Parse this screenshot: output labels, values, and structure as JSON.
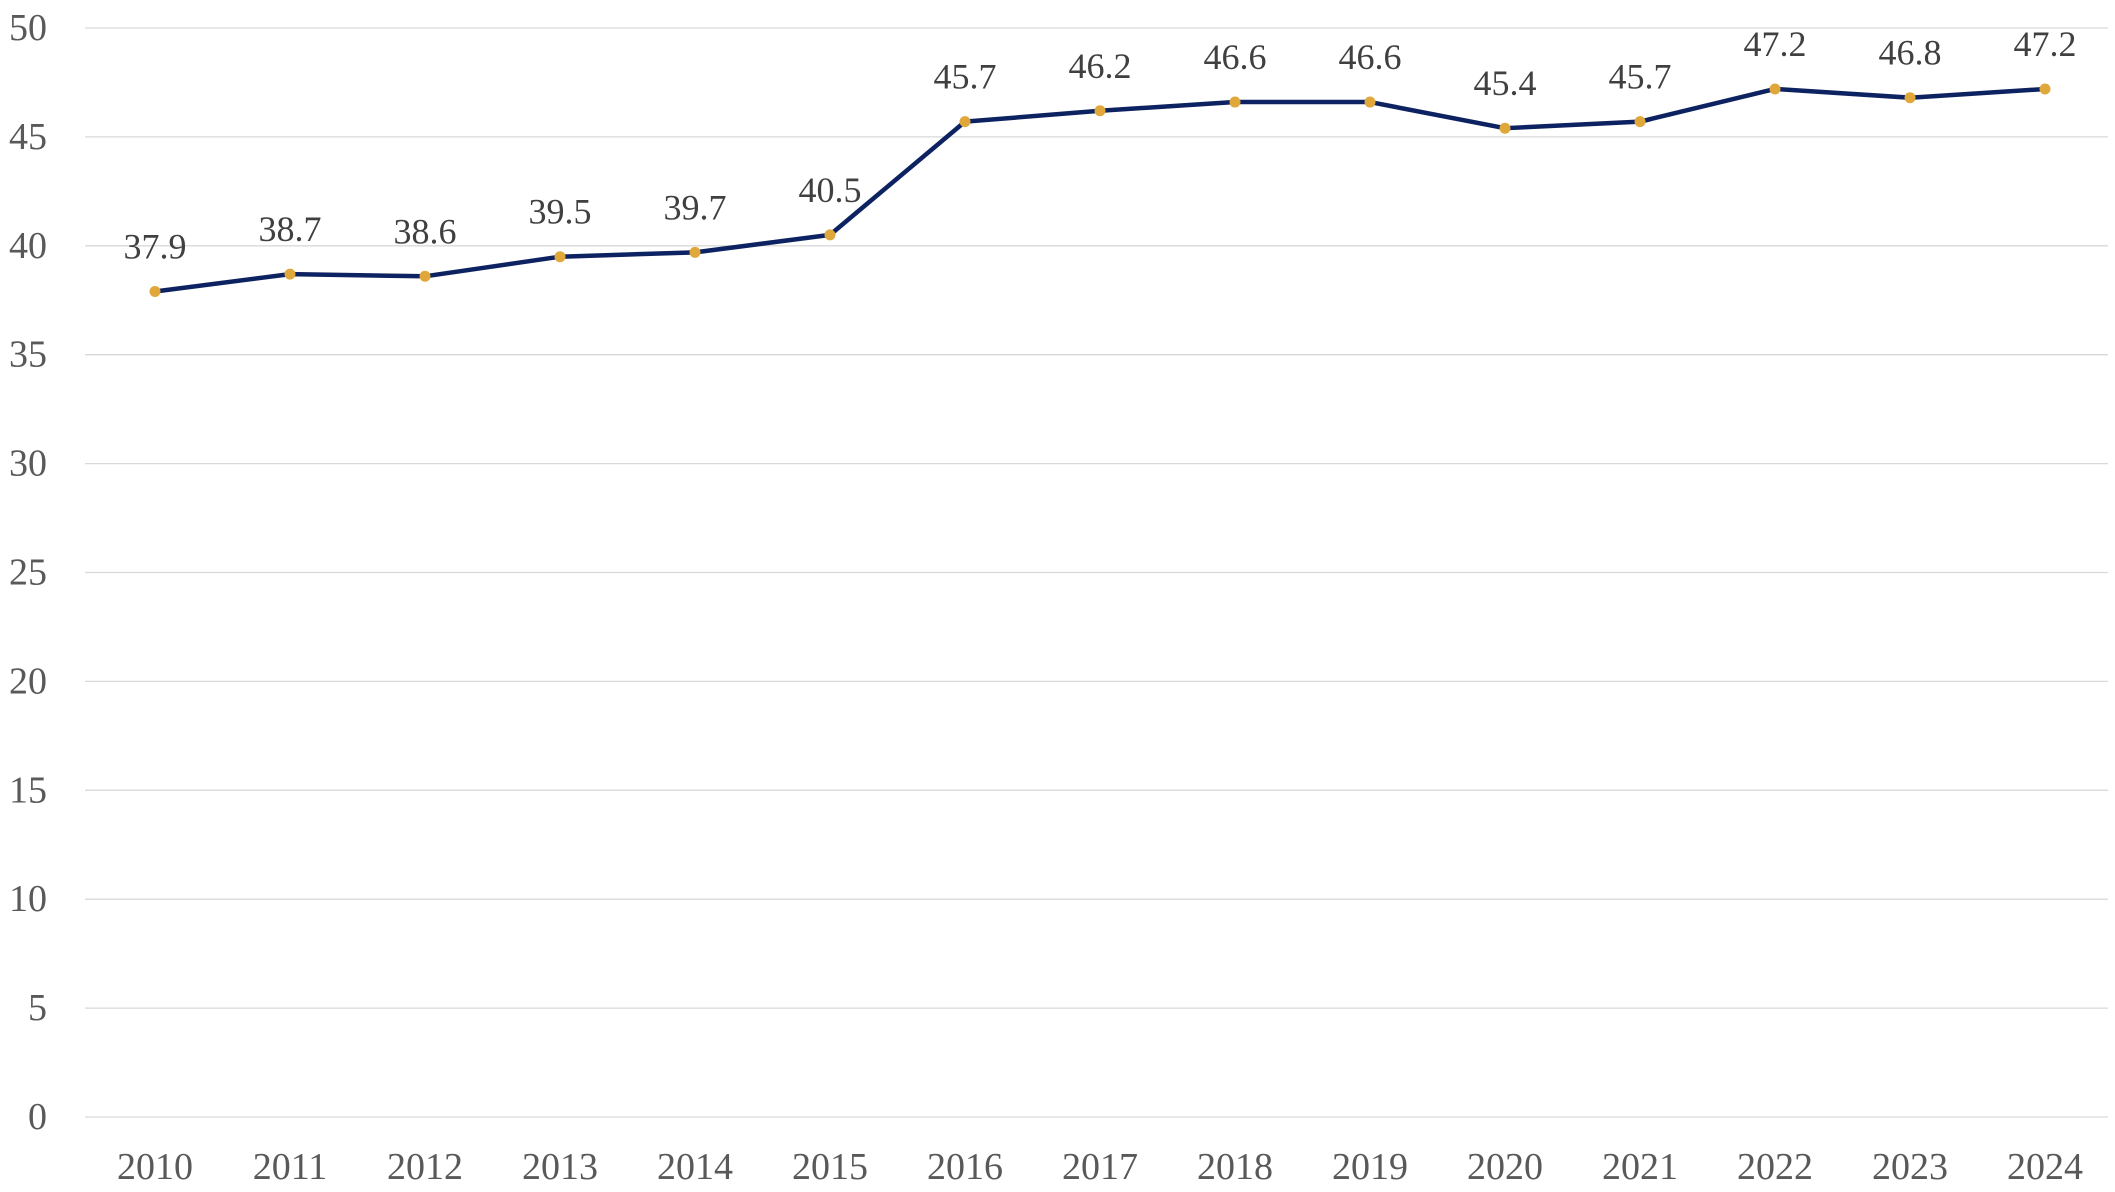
{
  "chart_data": {
    "type": "line",
    "title": "",
    "xlabel": "",
    "ylabel": "",
    "categories": [
      "2010",
      "2011",
      "2012",
      "2013",
      "2014",
      "2015",
      "2016",
      "2017",
      "2018",
      "2019",
      "2020",
      "2021",
      "2022",
      "2023",
      "2024"
    ],
    "series": [
      {
        "values": [
          37.9,
          38.7,
          38.6,
          39.5,
          39.7,
          40.5,
          45.7,
          46.2,
          46.6,
          46.6,
          45.4,
          45.7,
          47.2,
          46.8,
          47.2
        ],
        "labels": [
          "37.9",
          "38.7",
          "38.6",
          "39.5",
          "39.7",
          "40.5",
          "45.7",
          "46.2",
          "46.6",
          "46.6",
          "45.4",
          "45.7",
          "47.2",
          "46.8",
          "47.2"
        ],
        "line_color": "#0d2260",
        "marker_color": "#e0a83a"
      }
    ],
    "ylim": [
      0,
      50
    ],
    "yticks": [
      "0",
      "5",
      "10",
      "15",
      "20",
      "25",
      "30",
      "35",
      "40",
      "45",
      "50"
    ],
    "grid": true,
    "legend": "none"
  }
}
